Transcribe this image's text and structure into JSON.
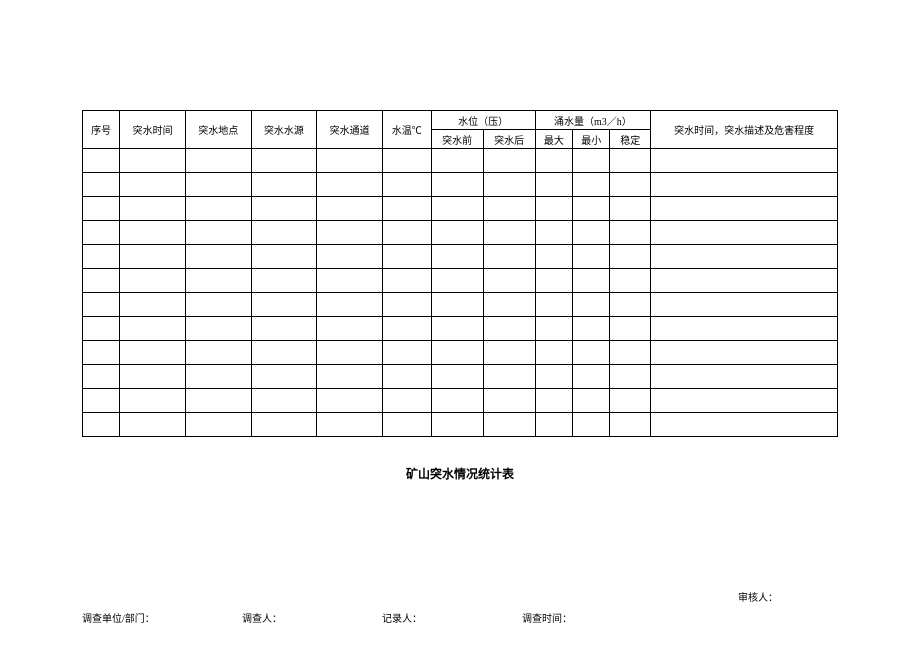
{
  "table": {
    "columns": {
      "col1": "序号",
      "col2": "突水时间",
      "col3": "突水地点",
      "col4": "突水水源",
      "col5": "突水通道",
      "col6": "水温℃",
      "col7_group": "水位（压）",
      "col7a": "突水前",
      "col7b": "突水后",
      "col8_group": "涌水量（m3／h）",
      "col8a": "最大",
      "col8b": "最小",
      "col8c": "稳定",
      "col9": "突水时间，突水描述及危害程度"
    },
    "column_widths": {
      "col1": 33,
      "col2": 58,
      "col3": 58,
      "col4": 58,
      "col5": 58,
      "col6": 43,
      "col7a": 46,
      "col7b": 46,
      "col8a": 33,
      "col8b": 33,
      "col8c": 36,
      "col9": 165
    },
    "empty_rows": 12,
    "border_color": "#000000",
    "background_color": "#ffffff",
    "header_fontsize": 10,
    "row_height_header": 19,
    "row_height_data": 24
  },
  "title": "矿山突水情况统计表",
  "title_fontsize": 12,
  "footer": {
    "item1": "调查单位/部门：",
    "item2": "调查人：",
    "item3": "记录人：",
    "item4": "调查时间：",
    "item5": "审核人："
  },
  "footer_fontsize": 10
}
